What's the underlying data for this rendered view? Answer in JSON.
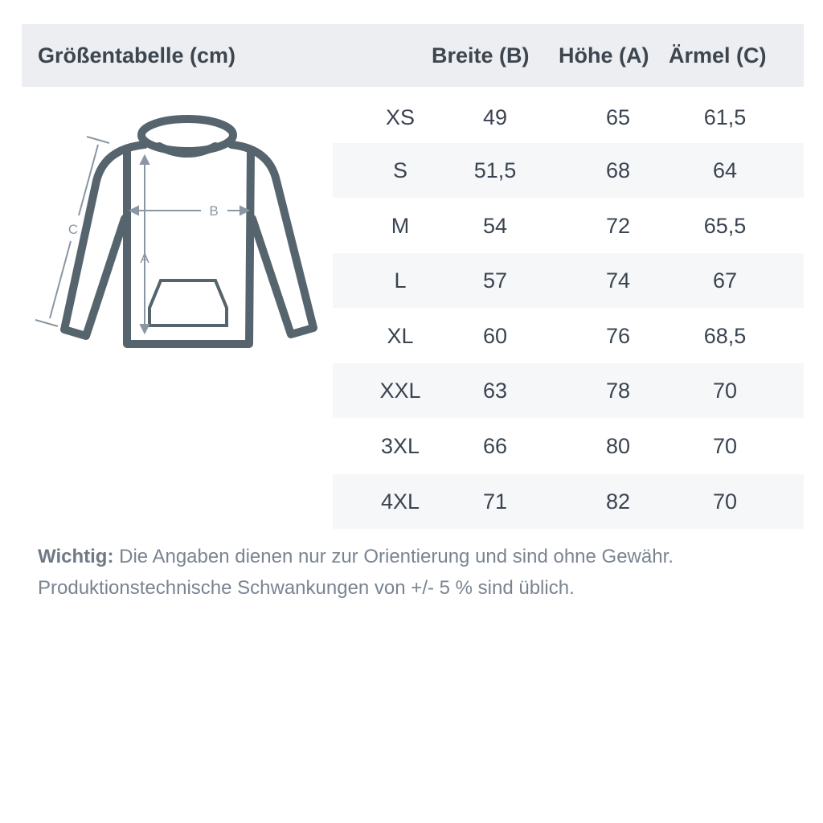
{
  "header": {
    "title": "Größentabelle (cm)",
    "columns": [
      "Breite (B)",
      "Höhe (A)",
      "Ärmel (C)"
    ]
  },
  "diagram": {
    "labels": {
      "a": "A",
      "b": "B",
      "c": "C"
    },
    "icon": "hoodie-icon",
    "stroke_color": "#56646d",
    "arrow_color": "#8a96a3"
  },
  "rows": [
    {
      "size": "XS",
      "breite": "49",
      "hoehe": "65",
      "aermel": "61,5"
    },
    {
      "size": "S",
      "breite": "51,5",
      "hoehe": "68",
      "aermel": "64"
    },
    {
      "size": "M",
      "breite": "54",
      "hoehe": "72",
      "aermel": "65,5"
    },
    {
      "size": "L",
      "breite": "57",
      "hoehe": "74",
      "aermel": "67"
    },
    {
      "size": "XL",
      "breite": "60",
      "hoehe": "76",
      "aermel": "68,5"
    },
    {
      "size": "XXL",
      "breite": "63",
      "hoehe": "78",
      "aermel": "70"
    },
    {
      "size": "3XL",
      "breite": "66",
      "hoehe": "80",
      "aermel": "70"
    },
    {
      "size": "4XL",
      "breite": "71",
      "hoehe": "82",
      "aermel": "70"
    }
  ],
  "footer": {
    "bold": "Wichtig:",
    "line1": " Die Angaben dienen nur zur Orientierung und sind ohne Gewähr.",
    "line2": "Produktionstechnische Schwankungen von +/- 5 % sind üblich."
  }
}
